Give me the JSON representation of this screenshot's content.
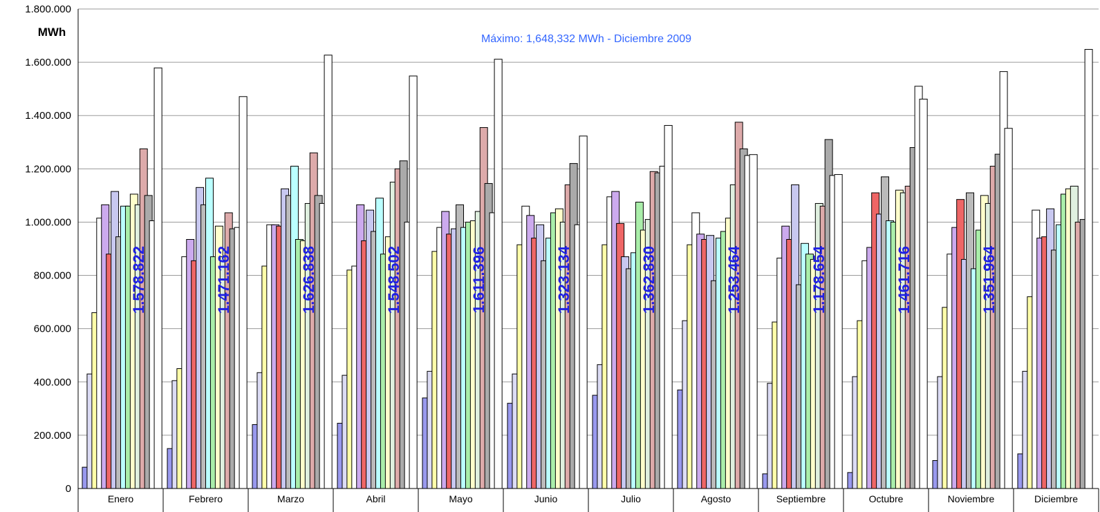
{
  "chart_data": {
    "type": "bar",
    "ylabel": "MWh",
    "ylim": [
      0,
      1800000
    ],
    "yticks": [
      0,
      200000,
      400000,
      600000,
      800000,
      1000000,
      1200000,
      1400000,
      1600000,
      1800000
    ],
    "ytick_labels": [
      "0",
      "200.000",
      "400.000",
      "600.000",
      "800.000",
      "1.000.000",
      "1.200.000",
      "1.400.000",
      "1.600.000",
      "1.800.000"
    ],
    "grid": true,
    "legend": "none",
    "categories": [
      "Enero",
      "Febrero",
      "Marzo",
      "Abril",
      "Mayo",
      "Junio",
      "Julio",
      "Agosto",
      "Septiembre",
      "Octubre",
      "Noviembre",
      "Diciembre"
    ],
    "annotation": "Máximo: 1,648,332 MWh - Diciembre 2009",
    "annotation_color": "#3366FF",
    "data_label_color": "#1F1FE6",
    "data_labels": [
      "1.578.822",
      "1.471.162",
      "1.626.838",
      "1.548.502",
      "1.611.396",
      "1.323.134",
      "1.362.830",
      "1.253.464",
      "1.178.654",
      "1.461.716",
      "1.351.964",
      ""
    ],
    "series": [
      {
        "color": "#9999EE",
        "values": [
          80000,
          150000,
          240000,
          245000,
          340000,
          320000,
          350000,
          370000,
          55000,
          60000,
          105000,
          130000
        ]
      },
      {
        "color": "#DCDCF5",
        "values": [
          430000,
          405000,
          435000,
          425000,
          440000,
          430000,
          465000,
          630000,
          395000,
          420000,
          420000,
          440000
        ]
      },
      {
        "color": "#FFFFAA",
        "values": [
          660000,
          450000,
          835000,
          820000,
          890000,
          915000,
          915000,
          915000,
          625000,
          630000,
          680000,
          720000
        ]
      },
      {
        "color": "#FFFFFF",
        "values": [
          1015000,
          870000,
          990000,
          835000,
          980000,
          1060000,
          1095000,
          1035000,
          865000,
          855000,
          880000,
          1045000
        ]
      },
      {
        "color": "#CCAAEE",
        "values": [
          1065000,
          935000,
          990000,
          1065000,
          1040000,
          1025000,
          1115000,
          955000,
          985000,
          905000,
          980000,
          940000
        ]
      },
      {
        "color": "#EE6666",
        "values": [
          880000,
          855000,
          985000,
          930000,
          955000,
          940000,
          995000,
          935000,
          935000,
          1110000,
          1085000,
          945000
        ]
      },
      {
        "color": "#C8C8F0",
        "values": [
          1115000,
          1130000,
          1125000,
          1045000,
          975000,
          990000,
          870000,
          950000,
          1140000,
          1030000,
          860000,
          1050000
        ]
      },
      {
        "color": "#BBBBBB",
        "values": [
          945000,
          1065000,
          1100000,
          965000,
          1065000,
          855000,
          825000,
          780000,
          765000,
          1170000,
          1110000,
          895000
        ]
      },
      {
        "color": "#BBFFFF",
        "values": [
          1060000,
          1165000,
          1210000,
          1090000,
          980000,
          940000,
          885000,
          940000,
          920000,
          1005000,
          825000,
          990000
        ]
      },
      {
        "color": "#AAEEAA",
        "values": [
          1060000,
          870000,
          935000,
          880000,
          1000000,
          1035000,
          1075000,
          965000,
          880000,
          1000000,
          970000,
          1105000
        ]
      },
      {
        "color": "#FFFFCC",
        "values": [
          1105000,
          985000,
          930000,
          945000,
          1005000,
          1050000,
          970000,
          1015000,
          860000,
          1120000,
          1100000,
          1125000
        ]
      },
      {
        "color": "#E0F0E0",
        "values": [
          1065000,
          870000,
          1070000,
          1150000,
          1040000,
          1000000,
          1010000,
          1140000,
          1070000,
          1110000,
          1070000,
          1135000
        ]
      },
      {
        "color": "#DDAAAA",
        "values": [
          1275000,
          1035000,
          1260000,
          1200000,
          1355000,
          1140000,
          1190000,
          1375000,
          1060000,
          1135000,
          1210000,
          1000000
        ]
      },
      {
        "color": "#AAAAAA",
        "values": [
          1100000,
          975000,
          1100000,
          1230000,
          1145000,
          1220000,
          1185000,
          1275000,
          1310000,
          1280000,
          1255000,
          1010000
        ]
      },
      {
        "color": "#FFFFFF",
        "values": [
          1005000,
          980000,
          1070000,
          1000000,
          1035000,
          990000,
          1210000,
          1250000,
          1175000,
          1510000,
          1565000,
          1648332
        ]
      },
      {
        "color": "#FFFFFF",
        "values": [
          1578822,
          1471162,
          1626838,
          1548502,
          1611396,
          1323134,
          1362830,
          1253464,
          1178654,
          1461716,
          1351964,
          0
        ]
      }
    ]
  }
}
